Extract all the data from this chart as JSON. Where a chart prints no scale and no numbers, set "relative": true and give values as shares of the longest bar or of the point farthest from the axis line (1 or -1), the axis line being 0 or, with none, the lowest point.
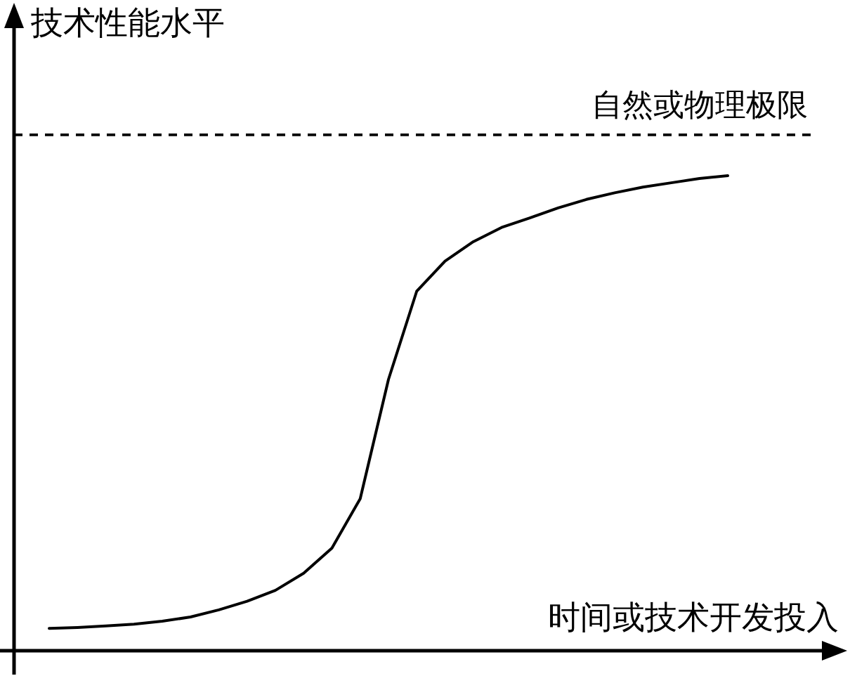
{
  "chart_data": {
    "type": "line",
    "relative": true,
    "xlabel": "时间或技术开发投入",
    "ylabel": "技术性能水平",
    "categories": [
      null,
      null,
      null,
      null,
      null,
      null,
      null,
      null,
      null,
      null,
      null,
      null,
      null,
      null,
      null,
      null,
      null,
      null,
      null,
      null,
      null,
      null,
      null,
      null,
      null
    ],
    "series": [
      {
        "color": "#000000",
        "line_style": "solid",
        "values": [
          0.047,
          0.049,
          0.052,
          0.056,
          0.062,
          0.071,
          0.086,
          0.104,
          0.127,
          0.163,
          0.216,
          0.32,
          0.571,
          0.757,
          0.82,
          0.861,
          0.891,
          0.911,
          0.932,
          0.95,
          0.964,
          0.976,
          0.985,
          0.994,
          1
        ]
      }
    ],
    "ref_lines": [
      {
        "axis": "y",
        "value": 1.086,
        "label": "自然或物理极限",
        "color": "#000000",
        "line_style": "dashed"
      }
    ]
  }
}
